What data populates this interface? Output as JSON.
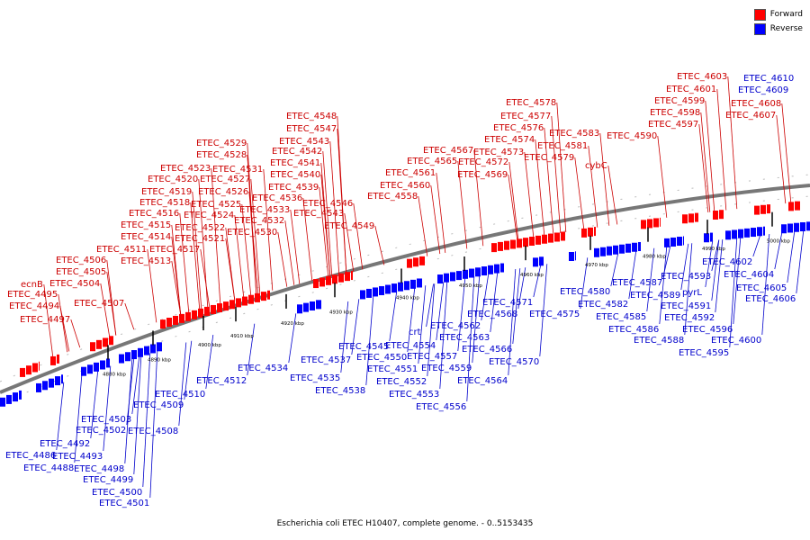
{
  "caption": "Escherichia coli ETEC H10407, complete genome. - 0..5153435",
  "legend": [
    {
      "label": "Forward",
      "color": "#ff0000"
    },
    {
      "label": "Reverse",
      "color": "#0000ff"
    }
  ],
  "ticks": [
    "4880 kbp",
    "4890 kbp",
    "4900 kbp",
    "4910 kbp",
    "4920 kbp",
    "4930 kbp",
    "4940 kbp",
    "4950 kbp",
    "4960 kbp",
    "4970 kbp",
    "4980 kbp",
    "4990 kbp",
    "5000 kbp"
  ],
  "forward_labels": [
    "ecnB",
    "ETEC_4495",
    "ETEC_4494",
    "ETEC_4497",
    "ETEC_4506",
    "ETEC_4505",
    "ETEC_4504",
    "ETEC_4507",
    "ETEC_4511",
    "ETEC_4513",
    "ETEC_4514",
    "ETEC_4515",
    "ETEC_4516",
    "ETEC_4517",
    "ETEC_4518",
    "ETEC_4519",
    "ETEC_4520",
    "ETEC_4521",
    "ETEC_4522",
    "ETEC_4523",
    "ETEC_4524",
    "ETEC_4525",
    "ETEC_4526",
    "ETEC_4527",
    "ETEC_4528",
    "ETEC_4529",
    "ETEC_4530",
    "ETEC_4531",
    "ETEC_4532",
    "ETEC_4533",
    "ETEC_4536",
    "ETEC_4539",
    "ETEC_4540",
    "ETEC_4541",
    "ETEC_4542",
    "ETEC_4543",
    "ETEC_4547",
    "ETEC_4548",
    "ETEC_4546",
    "ETEC_4543",
    "ETEC_4549",
    "ETEC_4558",
    "ETEC_4560",
    "ETEC_4561",
    "ETEC_4565",
    "ETEC_4567",
    "ETEC_4569",
    "ETEC_4572",
    "ETEC_4573",
    "ETEC_4574",
    "ETEC_4576",
    "ETEC_4577",
    "ETEC_4578",
    "ETEC_4579",
    "ETEC_4581",
    "ETEC_4583",
    "cybC",
    "ETEC_4590",
    "ETEC_4597",
    "ETEC_4598",
    "ETEC_4599",
    "ETEC_4601",
    "ETEC_4603",
    "ETEC_4607",
    "ETEC_4608"
  ],
  "reverse_labels": [
    "ETEC_4486",
    "ETEC_4488",
    "ETEC_4492",
    "ETEC_4493",
    "ETEC_4498",
    "ETEC_4499",
    "ETEC_4500",
    "ETEC_4501",
    "ETEC_4502",
    "ETEC_4503",
    "ETEC_4508",
    "ETEC_4509",
    "ETEC_4510",
    "ETEC_4512",
    "ETEC_4534",
    "ETEC_4535",
    "ETEC_4537",
    "ETEC_4538",
    "ETEC_4545",
    "ETEC_4550",
    "ETEC_4551",
    "ETEC_4552",
    "ETEC_4553",
    "ETEC_4554",
    "crt",
    "ETEC_4557",
    "ETEC_4559",
    "ETEC_4556",
    "ETEC_4562",
    "ETEC_4563",
    "ETEC_4564",
    "ETEC_4566",
    "ETEC_4568",
    "ETEC_4570",
    "ETEC_4571",
    "ETEC_4575",
    "ETEC_4580",
    "ETEC_4582",
    "ETEC_4585",
    "ETEC_4586",
    "ETEC_4587",
    "ETEC_4588",
    "ETEC_4589",
    "pyrL",
    "ETEC_4591",
    "ETEC_4592",
    "ETEC_4593",
    "ETEC_4595",
    "ETEC_4596",
    "ETEC_4600",
    "ETEC_4602",
    "ETEC_4604",
    "ETEC_4605",
    "ETEC_4606",
    "ETEC_4609",
    "ETEC_4610"
  ]
}
